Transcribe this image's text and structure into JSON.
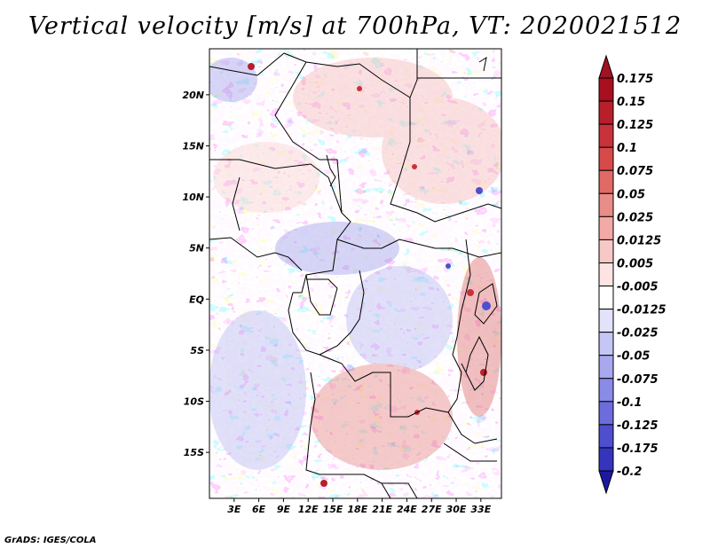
{
  "title": "Vertical velocity [m/s] at 700hPa, VT: 2020021512",
  "credit": "GrADS: IGES/COLA",
  "map": {
    "region": "Central Africa",
    "lon_range": [
      0,
      35.5
    ],
    "lat_range": [
      -19.5,
      24.5
    ],
    "lat_ticks": [
      {
        "value": 20,
        "label": "20N"
      },
      {
        "value": 15,
        "label": "15N"
      },
      {
        "value": 10,
        "label": "10N"
      },
      {
        "value": 5,
        "label": "5N"
      },
      {
        "value": 0,
        "label": "EQ"
      },
      {
        "value": -5,
        "label": "5S"
      },
      {
        "value": -10,
        "label": "10S"
      },
      {
        "value": -15,
        "label": "15S"
      }
    ],
    "lon_ticks": [
      {
        "value": 3,
        "label": "3E"
      },
      {
        "value": 6,
        "label": "6E"
      },
      {
        "value": 9,
        "label": "9E"
      },
      {
        "value": 12,
        "label": "12E"
      },
      {
        "value": 15,
        "label": "15E"
      },
      {
        "value": 18,
        "label": "18E"
      },
      {
        "value": 21,
        "label": "21E"
      },
      {
        "value": 24,
        "label": "24E"
      },
      {
        "value": 27,
        "label": "27E"
      },
      {
        "value": 30,
        "label": "30E"
      },
      {
        "value": 33,
        "label": "33E"
      }
    ]
  },
  "colorbar": {
    "levels": [
      {
        "label": "0.175",
        "color": "#a80f1f"
      },
      {
        "label": "0.15",
        "color": "#b81f2b"
      },
      {
        "label": "0.125",
        "color": "#c8323a"
      },
      {
        "label": "0.1",
        "color": "#d64a4a"
      },
      {
        "label": "0.075",
        "color": "#e06a66"
      },
      {
        "label": "0.05",
        "color": "#ea8c88"
      },
      {
        "label": "0.025",
        "color": "#f3aaa7"
      },
      {
        "label": "0.0125",
        "color": "#f8c8c6"
      },
      {
        "label": "0.005",
        "color": "#fde3e2"
      },
      {
        "label": "-0.005",
        "color": "#ffffff"
      },
      {
        "label": "-0.0125",
        "color": "#e2e2fb"
      },
      {
        "label": "-0.025",
        "color": "#c6c6f6"
      },
      {
        "label": "-0.05",
        "color": "#a8a8ef"
      },
      {
        "label": "-0.075",
        "color": "#8a8ae7"
      },
      {
        "label": "-0.1",
        "color": "#6c6cdc"
      },
      {
        "label": "-0.125",
        "color": "#4e4ecf"
      },
      {
        "label": "-0.175",
        "color": "#3434bd"
      },
      {
        "label": "-0.2",
        "color": "#1d1da8"
      }
    ],
    "extend_top_color": "#a11222",
    "extend_bottom_color": "#1c19a1"
  }
}
